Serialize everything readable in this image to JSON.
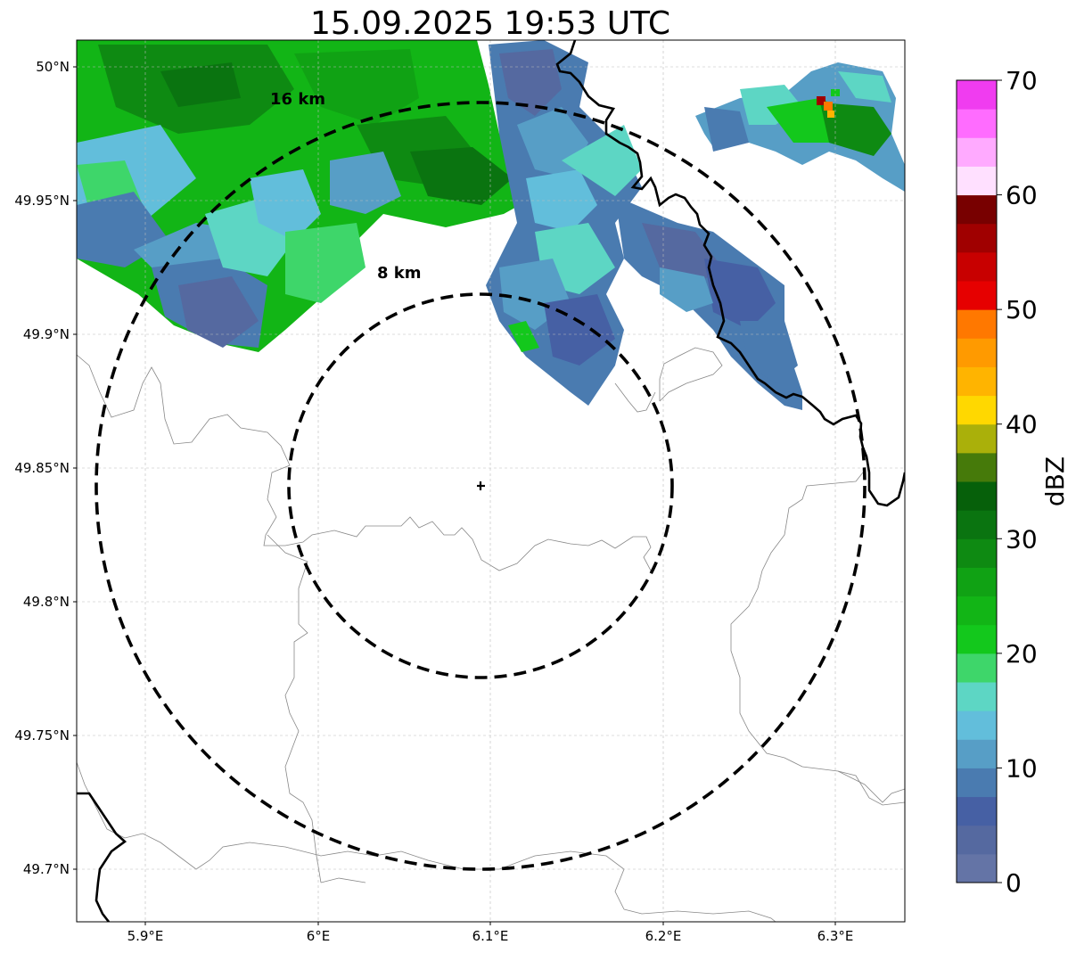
{
  "title": "15.09.2025 19:53 UTC",
  "x_ticks": [
    "5.9°E",
    "6°E",
    "6.1°E",
    "6.2°E",
    "6.3°E"
  ],
  "y_ticks": [
    "50°N",
    "49.95°N",
    "49.9°N",
    "49.85°N",
    "49.8°N",
    "49.75°N",
    "49.7°N"
  ],
  "rings": [
    {
      "label": "16 km",
      "radius_km": 16
    },
    {
      "label": "8 km",
      "radius_km": 8
    }
  ],
  "colorbar": {
    "label": "dBZ",
    "ticks": [
      "0",
      "10",
      "20",
      "30",
      "40",
      "50",
      "60",
      "70"
    ],
    "colors": [
      "#6474a6",
      "#5569a0",
      "#4660a4",
      "#4a7bb0",
      "#579ec6",
      "#62bedb",
      "#5dd6c4",
      "#3ed66a",
      "#13c81c",
      "#12b516",
      "#10a214",
      "#0e8a12",
      "#0a7410",
      "#06600a",
      "#467a0a",
      "#aab00a",
      "#ffd800",
      "#ffb400",
      "#ff9a00",
      "#ff7800",
      "#e60000",
      "#c80000",
      "#a00000",
      "#780000",
      "#ffe0ff",
      "#ffaaff",
      "#ff6cff",
      "#f03cf0"
    ]
  },
  "colors": {
    "ring": "#000000",
    "border": "#000000",
    "outline": "#888888",
    "grid": "#bbbbbb"
  }
}
